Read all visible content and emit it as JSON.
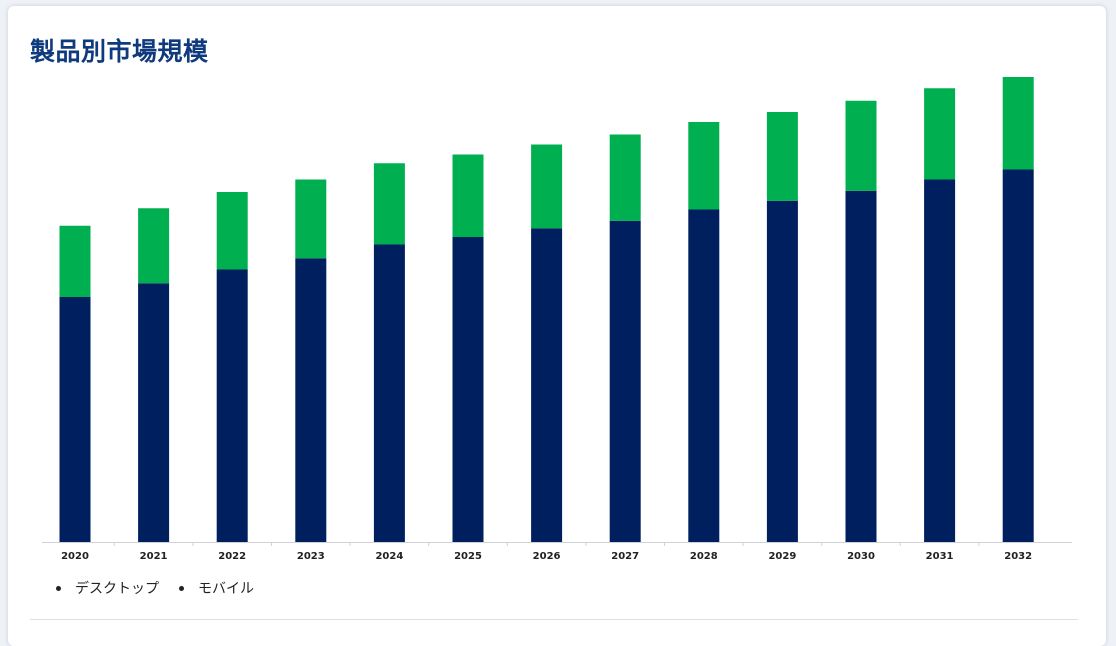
{
  "title": "製品別市場規模",
  "chart_data": {
    "type": "bar",
    "stacked": true,
    "categories": [
      "2020",
      "2021",
      "2022",
      "2023",
      "2024",
      "2025",
      "2026",
      "2027",
      "2028",
      "2029",
      "2030",
      "2031",
      "2032"
    ],
    "series": [
      {
        "name": "デスクトップ",
        "color": "#001f5f",
        "values": [
          196,
          207,
          218,
          227,
          238,
          244,
          251,
          257,
          266,
          273,
          281,
          290,
          298
        ]
      },
      {
        "name": "モバイル",
        "color": "#00b050",
        "values": [
          57,
          60,
          62,
          63,
          65,
          66,
          67,
          69,
          70,
          71,
          72,
          73,
          74
        ]
      }
    ],
    "ylim": [
      0,
      400
    ],
    "grid": false,
    "y_axis_shown": false,
    "legend_position": "bottom-left"
  }
}
